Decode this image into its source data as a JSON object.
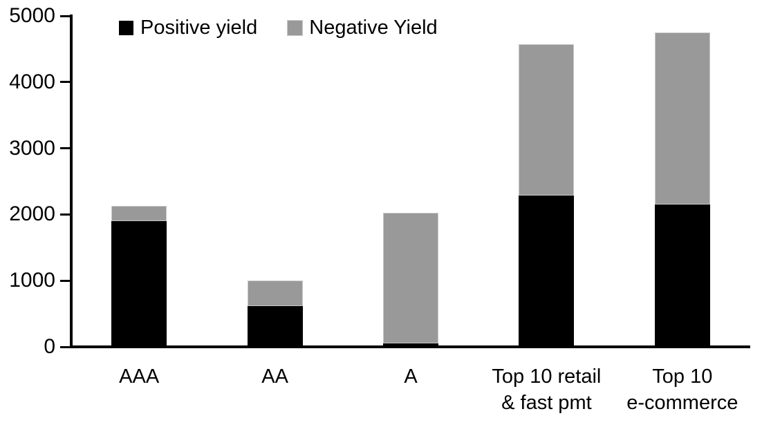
{
  "legend": {
    "positive_label": "Positive yield",
    "negative_label": "Negative Yield"
  },
  "colors": {
    "positive": "#000000",
    "negative": "#999999",
    "axis": "#000000",
    "background": "#ffffff"
  },
  "chart_data": {
    "type": "bar",
    "stacked": true,
    "title": "",
    "xlabel": "",
    "ylabel": "",
    "categories": [
      "AAA",
      "AA",
      "A",
      "Top 10 retail & fast pmt",
      "Top 10 e-commerce"
    ],
    "category_lines": [
      [
        "AAA"
      ],
      [
        "AA"
      ],
      [
        "A"
      ],
      [
        "Top 10 retail",
        "& fast pmt"
      ],
      [
        "Top 10",
        "e-commerce"
      ]
    ],
    "series": [
      {
        "name": "Positive yield",
        "color": "#000000",
        "values": [
          1900,
          620,
          50,
          2290,
          2150
        ]
      },
      {
        "name": "Negative Yield",
        "color": "#999999",
        "values": [
          230,
          380,
          1980,
          2280,
          2600
        ]
      }
    ],
    "totals": [
      2130,
      1000,
      2030,
      4570,
      4750
    ],
    "ylim": [
      0,
      5000
    ],
    "yticks": [
      0,
      1000,
      2000,
      3000,
      4000,
      5000
    ],
    "grid": false,
    "legend_position": "top"
  }
}
